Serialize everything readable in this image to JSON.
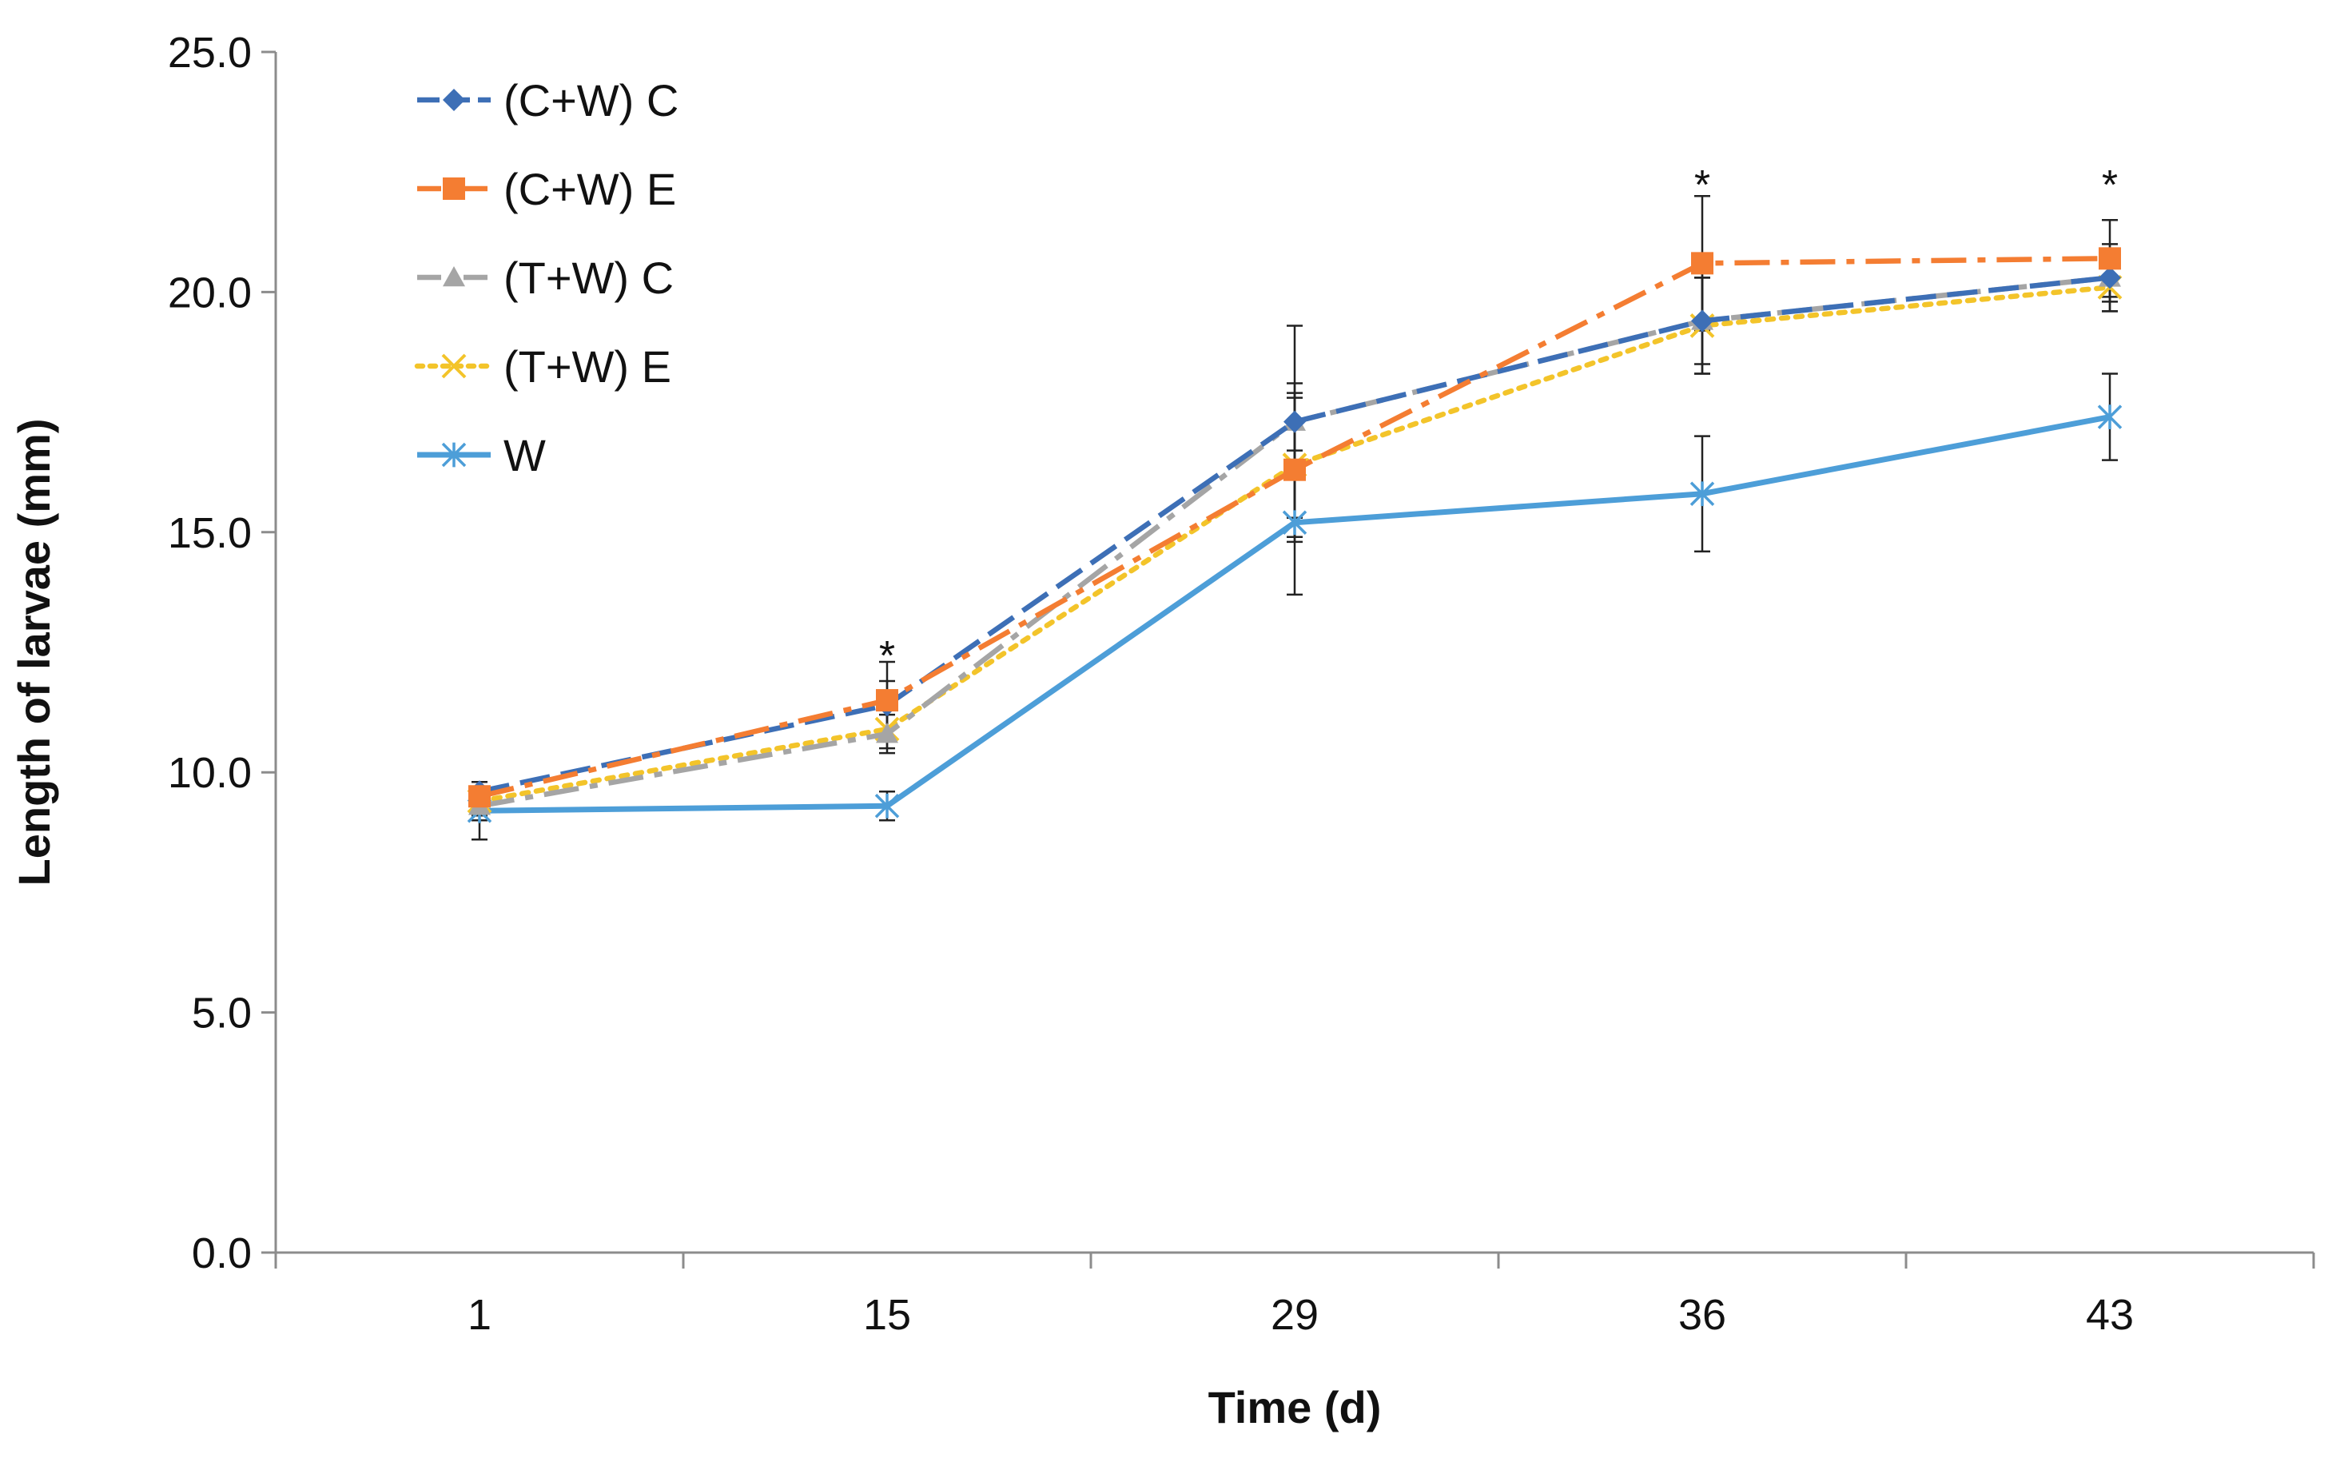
{
  "chart_data": {
    "type": "line",
    "title": "",
    "xlabel": "Time (d)",
    "ylabel": "Length of larvae (mm)",
    "categories": [
      "1",
      "15",
      "29",
      "36",
      "43"
    ],
    "ylim": [
      0,
      25
    ],
    "yticks": [
      "0.0",
      "5.0",
      "10.0",
      "15.0",
      "20.0",
      "25.0"
    ],
    "grid": false,
    "legend_position": "top-left",
    "series": [
      {
        "name": "(C+W) C",
        "values": [
          9.6,
          11.4,
          17.3,
          19.4,
          20.3
        ],
        "errors": [
          0.2,
          0.5,
          0.8,
          0.9,
          0.5
        ],
        "color": "#3d6fb6",
        "marker": "diamond",
        "dash": "dash"
      },
      {
        "name": "(C+W) E",
        "values": [
          9.5,
          11.5,
          16.3,
          20.6,
          20.7
        ],
        "errors": [
          0.3,
          0.8,
          1.5,
          1.4,
          0.8
        ],
        "color": "#f47d32",
        "marker": "square",
        "dash": "dashdot"
      },
      {
        "name": "(T+W) C",
        "values": [
          9.3,
          10.8,
          17.3,
          19.4,
          20.3
        ],
        "errors": [
          0.3,
          0.4,
          2.0,
          1.1,
          0.7
        ],
        "color": "#a5a5a5",
        "marker": "triangle",
        "dash": "dashdot"
      },
      {
        "name": "(T+W) E",
        "values": [
          9.4,
          10.9,
          16.4,
          19.3,
          20.1
        ],
        "errors": [
          0.3,
          0.4,
          1.5,
          1.0,
          0.5
        ],
        "color": "#f3c42a",
        "marker": "x",
        "dash": "dot"
      },
      {
        "name": "W",
        "values": [
          9.2,
          9.3,
          15.2,
          15.8,
          17.4
        ],
        "errors": [
          0.6,
          0.3,
          1.5,
          1.2,
          0.9
        ],
        "color": "#4d9ed8",
        "marker": "star",
        "dash": "solid"
      }
    ],
    "annotations": [
      {
        "category": "15",
        "text": "*",
        "y": 12.6
      },
      {
        "category": "36",
        "text": "*",
        "y": 22.4
      },
      {
        "category": "43",
        "text": "*",
        "y": 22.4
      }
    ]
  }
}
